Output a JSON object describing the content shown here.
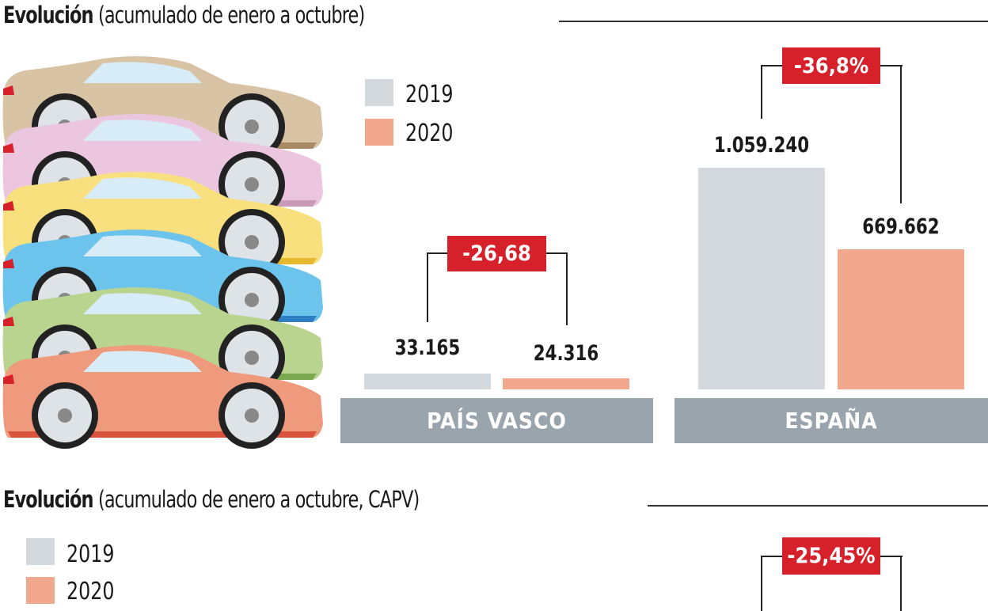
{
  "chart_data": [
    {
      "type": "bar",
      "title_bold": "Evolución",
      "title_rest": "(acumulado de enero a octubre)",
      "legend": [
        "2019",
        "2020"
      ],
      "colors": {
        "2019": "#d3d9dd",
        "2020": "#f2a88c",
        "badge": "#d6202a",
        "category": "#9aa4ac"
      },
      "groups": [
        {
          "category": "PAÍS VASCO",
          "labels": [
            "33.165",
            "24.316"
          ],
          "raw": [
            33165,
            24316
          ],
          "change": "-26,68"
        },
        {
          "category": "ESPAÑA",
          "labels": [
            "1.059.240",
            "669.662"
          ],
          "raw": [
            1059240,
            669662
          ],
          "change": "-36,8%"
        }
      ]
    },
    {
      "type": "bar",
      "title_bold": "Evolución",
      "title_rest": "(acumulado de enero a octubre, CAPV)",
      "legend": [
        "2019",
        "2020"
      ],
      "change": "-25,45%"
    }
  ]
}
